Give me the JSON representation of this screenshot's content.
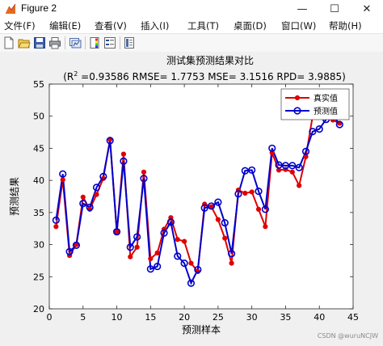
{
  "window": {
    "title": "Figure 2",
    "minimize_glyph": "—",
    "maximize_glyph": "☐",
    "close_glyph": "✕"
  },
  "menu": [
    "文件(F)",
    "编辑(E)",
    "查看(V)",
    "插入(I)",
    "工具(T)",
    "桌面(D)",
    "窗口(W)",
    "帮助(H)"
  ],
  "toolbar_icons": [
    "new-figure-icon",
    "open-file-icon",
    "save-icon",
    "print-icon",
    "link-plot-icon",
    "colorbar-icon",
    "legend-icon",
    "property-editor-icon"
  ],
  "watermark": "CSDN @wuruNCJW",
  "colors": {
    "series_actual": "#e00000",
    "series_predicted": "#0000cc"
  },
  "chart_data": {
    "type": "line",
    "title_line1": "测试集预测结果对比",
    "title_line2_prefix": "(R",
    "title_line2_sup": "2",
    "title_line2_rest": " =0.93586 RMSE= 1.7753 MSE= 3.1516 RPD= 3.9885)",
    "xlabel": "预测样本",
    "ylabel": "预测结果",
    "xlim": [
      0,
      45
    ],
    "ylim": [
      20,
      55
    ],
    "xticks": [
      0,
      5,
      10,
      15,
      20,
      25,
      30,
      35,
      40,
      45
    ],
    "yticks": [
      20,
      25,
      30,
      35,
      40,
      45,
      50,
      55
    ],
    "grid": false,
    "legend_position": "top-right",
    "x": [
      1,
      2,
      3,
      4,
      5,
      6,
      7,
      8,
      9,
      10,
      11,
      12,
      13,
      14,
      15,
      16,
      17,
      18,
      19,
      20,
      21,
      22,
      23,
      24,
      25,
      26,
      27,
      28,
      29,
      30,
      31,
      32,
      33,
      34,
      35,
      36,
      37,
      38,
      39,
      40,
      41,
      42,
      43
    ],
    "series": [
      {
        "name": "真实值",
        "color": "#e00000",
        "marker": "dot",
        "values": [
          32.8,
          40.1,
          28.3,
          30.0,
          37.4,
          35.5,
          37.8,
          40.3,
          46.4,
          32.0,
          44.1,
          28.1,
          29.6,
          41.3,
          27.8,
          28.7,
          32.4,
          34.2,
          30.8,
          30.5,
          27.1,
          25.8,
          36.3,
          35.9,
          33.9,
          31.0,
          27.1,
          38.5,
          38.0,
          38.2,
          35.5,
          32.8,
          44.3,
          41.6,
          41.7,
          41.3,
          39.2,
          43.7,
          50.0,
          50.0,
          50.2,
          49.4,
          48.9
        ]
      },
      {
        "name": "预测值",
        "color": "#0000cc",
        "marker": "circle",
        "values": [
          33.8,
          41.0,
          28.9,
          29.9,
          36.4,
          35.8,
          38.9,
          40.6,
          46.2,
          32.0,
          43.0,
          29.6,
          31.2,
          40.3,
          26.2,
          26.6,
          31.8,
          33.5,
          28.2,
          27.1,
          24.0,
          26.1,
          35.7,
          36.0,
          36.6,
          33.4,
          28.6,
          37.9,
          41.5,
          41.6,
          38.3,
          35.5,
          45.0,
          42.4,
          42.3,
          42.3,
          42.0,
          44.5,
          47.6,
          48.0,
          49.5,
          50.2,
          48.7
        ]
      }
    ]
  }
}
